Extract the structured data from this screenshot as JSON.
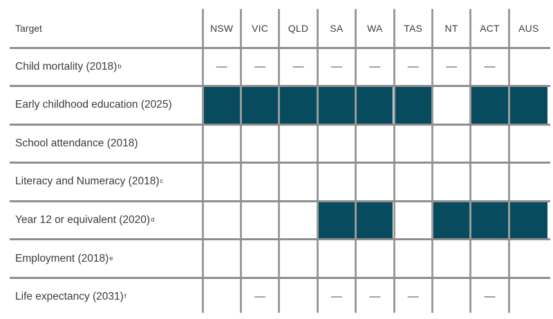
{
  "colors": {
    "cell_fill": "#084a5e",
    "vertical_grid_line": "#9b9b9b",
    "horizontal_rule": "#8e8e8e",
    "text": "#3c3c3c",
    "dash": "#474747"
  },
  "glyphs": {
    "dash": "—"
  },
  "chart_data": {
    "type": "table",
    "title": "",
    "row_header": "Target",
    "columns": [
      "NSW",
      "VIC",
      "QLD",
      "SA",
      "WA",
      "TAS",
      "NT",
      "ACT",
      "AUS"
    ],
    "cell_state_meanings": {
      "filled": "solid dark teal cell",
      "dash": "em dash shown in cell",
      "empty": "blank cell"
    },
    "rows": [
      {
        "label": "Child mortality (2018)",
        "superscript": "b",
        "cells": [
          "dash",
          "dash",
          "dash",
          "dash",
          "dash",
          "dash",
          "dash",
          "dash",
          "empty"
        ]
      },
      {
        "label": "Early childhood education (2025)",
        "superscript": "",
        "cells": [
          "filled",
          "filled",
          "filled",
          "filled",
          "filled",
          "filled",
          "empty",
          "filled",
          "filled"
        ]
      },
      {
        "label": "School attendance (2018)",
        "superscript": "",
        "cells": [
          "empty",
          "empty",
          "empty",
          "empty",
          "empty",
          "empty",
          "empty",
          "empty",
          "empty"
        ]
      },
      {
        "label": "Literacy and Numeracy (2018)",
        "superscript": "c",
        "cells": [
          "empty",
          "empty",
          "empty",
          "empty",
          "empty",
          "empty",
          "empty",
          "empty",
          "empty"
        ]
      },
      {
        "label": "Year 12 or equivalent (2020)",
        "superscript": "d",
        "cells": [
          "empty",
          "empty",
          "empty",
          "filled",
          "filled",
          "empty",
          "filled",
          "filled",
          "filled"
        ]
      },
      {
        "label": "Employment (2018)",
        "superscript": "e",
        "cells": [
          "empty",
          "empty",
          "empty",
          "empty",
          "empty",
          "empty",
          "empty",
          "empty",
          "empty"
        ]
      },
      {
        "label": "Life expectancy (2031)",
        "superscript": "f",
        "cells": [
          "empty",
          "dash",
          "empty",
          "dash",
          "dash",
          "dash",
          "empty",
          "dash",
          "empty"
        ]
      }
    ]
  }
}
